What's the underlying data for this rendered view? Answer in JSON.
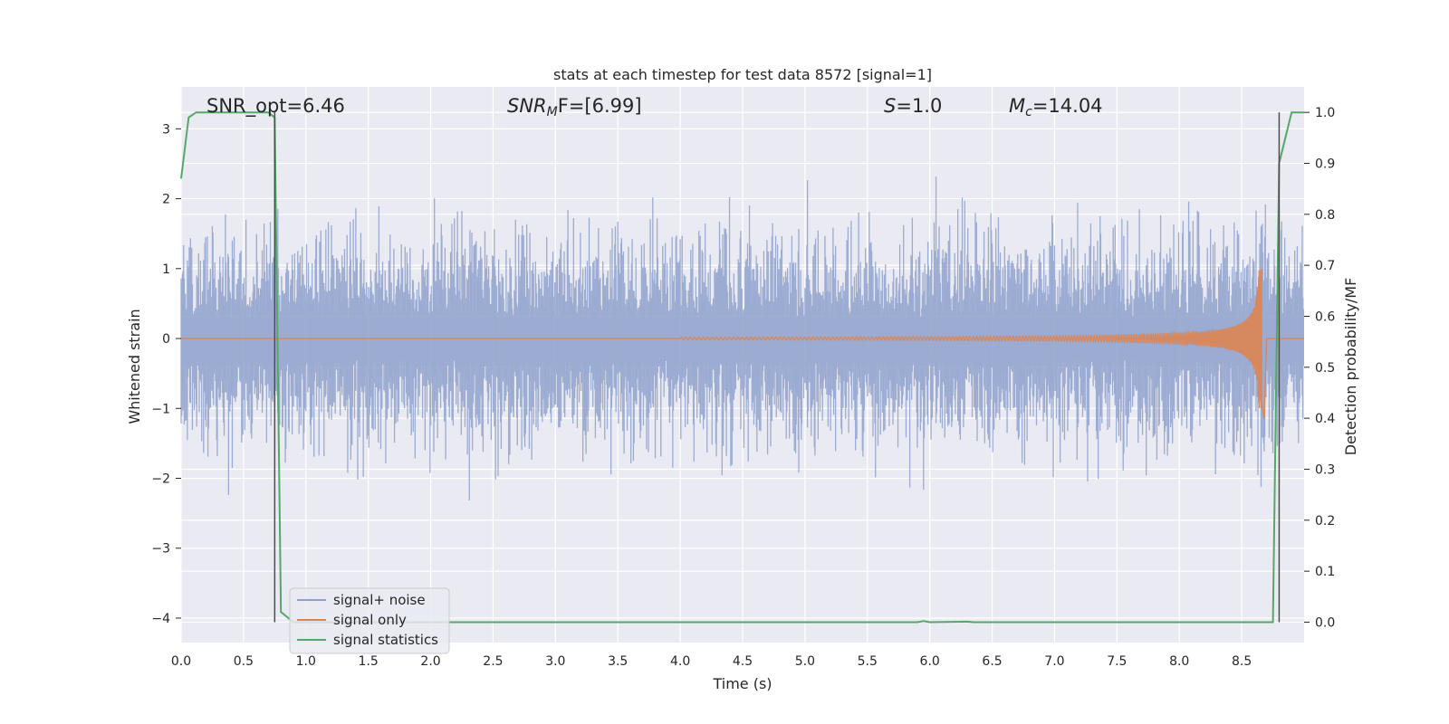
{
  "chart_data": {
    "type": "line",
    "title": "stats at each timestep for test data 8572 [signal=1]",
    "xlabel": "Time (s)",
    "ylabel_left": "Whitened strain",
    "ylabel_right": "Detection probability/MF",
    "xlim": [
      0.0,
      9.0
    ],
    "ylim_left": [
      -4.35,
      3.6
    ],
    "ylim_right": [
      -0.04,
      1.05
    ],
    "x_ticks": [
      "0.0",
      "0.5",
      "1.0",
      "1.5",
      "2.0",
      "2.5",
      "3.0",
      "3.5",
      "4.0",
      "4.5",
      "5.0",
      "5.5",
      "6.0",
      "6.5",
      "7.0",
      "7.5",
      "8.0",
      "8.5"
    ],
    "y_ticks_left": [
      "3",
      "2",
      "1",
      "0",
      "−1",
      "−2",
      "−3",
      "−4"
    ],
    "y_ticks_right": [
      "1.0",
      "0.9",
      "0.8",
      "0.7",
      "0.6",
      "0.5",
      "0.4",
      "0.3",
      "0.2",
      "0.1",
      "0.0"
    ],
    "grid": true,
    "legend_position": "lower-left",
    "annotations": {
      "snr_opt": "SNR_opt=6.46",
      "snr_mf_sym": "SNR",
      "snr_mf_sub": "M",
      "snr_mf_rest": "F=[6.99]",
      "s_sym": "S",
      "s_rest": "=1.0",
      "mc_sym": "M",
      "mc_sub": "c",
      "mc_rest": "=14.04"
    },
    "series": [
      {
        "name": "signal+ noise",
        "axis": "left",
        "color": "#8da0cb",
        "description_values": "noise-dominated whitened strain, amplitude mostly within [-2.5, 2.5]"
      },
      {
        "name": "signal only",
        "axis": "left",
        "color": "#dd8452",
        "chirp_start_x": 4.0,
        "chirp_end_x": 8.66,
        "peak_amplitude": 1.0
      },
      {
        "name": "signal statistics",
        "axis": "right",
        "color": "#55a868",
        "x": [
          0.0,
          0.06,
          0.12,
          0.7,
          0.75,
          0.8,
          0.9,
          5.9,
          5.95,
          6.0,
          6.3,
          6.35,
          8.75,
          8.8,
          8.9,
          8.95,
          9.0
        ],
        "y": [
          0.87,
          0.99,
          1.0,
          1.0,
          0.99,
          0.02,
          0.0,
          0.0,
          0.002,
          0.0,
          0.001,
          0.0,
          0.0,
          0.9,
          1.0,
          1.0,
          1.0
        ]
      }
    ],
    "vertical_markers": [
      0.75,
      8.8
    ]
  },
  "colors": {
    "axes_bg": "#eaeaf2",
    "grid": "#ffffff",
    "noise": "#8da0cb",
    "signal": "#dd8452",
    "stats": "#55a868",
    "marker": "#4d4d4d"
  }
}
